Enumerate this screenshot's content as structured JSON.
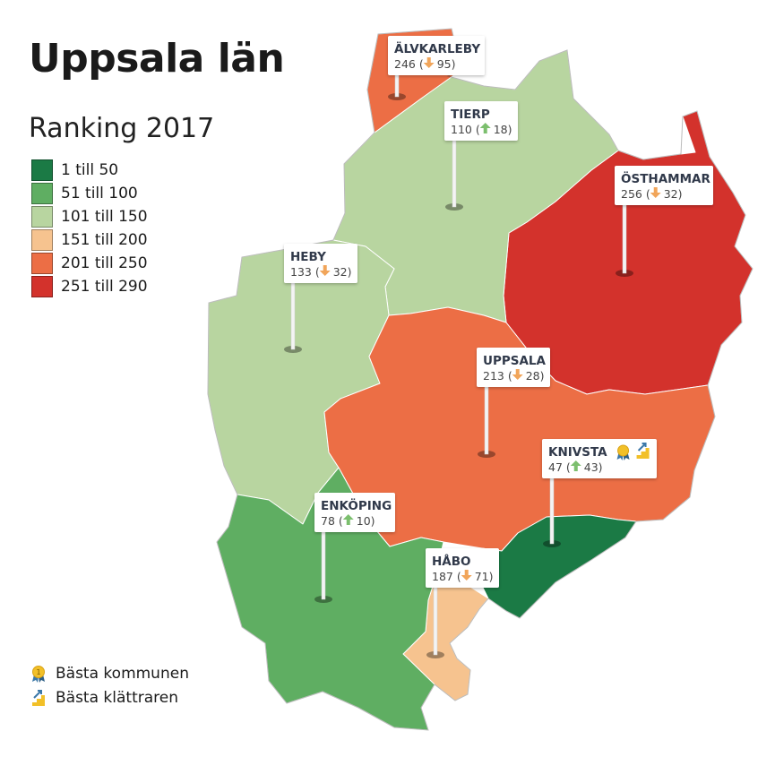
{
  "title": "Uppsala län",
  "subtitle": "Ranking 2017",
  "legend": [
    {
      "label": "1 till 50",
      "color": "#1b7a45"
    },
    {
      "label": "51 till 100",
      "color": "#5fae62"
    },
    {
      "label": "101 till 150",
      "color": "#b8d5a0"
    },
    {
      "label": "151 till 200",
      "color": "#f6c38f"
    },
    {
      "label": "201 till 250",
      "color": "#ec6e45"
    },
    {
      "label": "251 till 290",
      "color": "#d3322c"
    }
  ],
  "key": {
    "best_municipality": "Bästa kommunen",
    "best_climber": "Bästa klättraren"
  },
  "municipalities": [
    {
      "name": "ÄLVKARLEBY",
      "rank": "246",
      "change": "95",
      "direction": "down",
      "band_color": "#ec6e45"
    },
    {
      "name": "TIERP",
      "rank": "110",
      "change": "18",
      "direction": "up",
      "band_color": "#b8d5a0"
    },
    {
      "name": "ÖSTHAMMAR",
      "rank": "256",
      "change": "32",
      "direction": "down",
      "band_color": "#d3322c"
    },
    {
      "name": "HEBY",
      "rank": "133",
      "change": "32",
      "direction": "down",
      "band_color": "#b8d5a0"
    },
    {
      "name": "UPPSALA",
      "rank": "213",
      "change": "28",
      "direction": "down",
      "band_color": "#ec6e45"
    },
    {
      "name": "KNIVSTA",
      "rank": "47",
      "change": "43",
      "direction": "up",
      "band_color": "#1b7a45",
      "badges": [
        "best-municipality",
        "best-climber"
      ]
    },
    {
      "name": "ENKÖPING",
      "rank": "78",
      "change": "10",
      "direction": "up",
      "band_color": "#5fae62"
    },
    {
      "name": "HÅBO",
      "rank": "187",
      "change": "71",
      "direction": "down",
      "band_color": "#f6c38f"
    }
  ],
  "arrow_colors": {
    "up": "#7cbf6e",
    "down": "#f1a55a"
  }
}
